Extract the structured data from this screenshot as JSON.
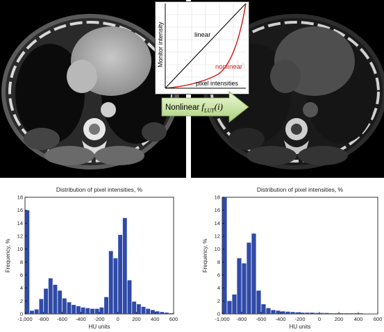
{
  "inset": {
    "y_axis_label": "Monitor intensity",
    "x_axis_label": "pixel intensities",
    "linear_label": "linear",
    "nonlinear_label": "nonlinear"
  },
  "arrow": {
    "prefix": "Nonlinear ",
    "func": "f",
    "sub": "LUT",
    "arg": "(i)"
  },
  "colors": {
    "bar": "#2f4aa8",
    "nonlinear_curve": "#d42020",
    "linear_curve": "#111111",
    "arrow_fill_top": "#eef8d8",
    "arrow_fill_bottom": "#a9d07a"
  },
  "chart_data": [
    {
      "type": "bar",
      "title": "Distribution of pixel intensities, %",
      "xlabel": "HU units",
      "ylabel": "Frequency, %",
      "xlim": [
        -1000,
        600
      ],
      "ylim": [
        0,
        18
      ],
      "xticks": [
        "-1,000",
        "-800",
        "-600",
        "-400",
        "-200",
        "0",
        "200",
        "400",
        "600"
      ],
      "yticks": [
        "0",
        "2",
        "4",
        "6",
        "8",
        "10",
        "12",
        "14",
        "16",
        "18"
      ],
      "bin_start": -1000,
      "bin_width": 50,
      "values": [
        16,
        0.5,
        0.7,
        2.3,
        3.9,
        5.5,
        4.5,
        3.6,
        2.4,
        1.8,
        1.4,
        1.2,
        1.0,
        0.9,
        0.8,
        0.8,
        1.0,
        2.6,
        9.7,
        8.6,
        12.2,
        14.8,
        5.2,
        1.9,
        1.5,
        1.1,
        0.8,
        0.6,
        0.4,
        0.3,
        0.2,
        0.1
      ]
    },
    {
      "type": "bar",
      "title": "Distribution of pixel intensities, %",
      "xlabel": "HU units",
      "ylabel": "Frequency, %",
      "xlim": [
        -1000,
        600
      ],
      "ylim": [
        0,
        18
      ],
      "xticks": [
        "-1,000",
        "-800",
        "-600",
        "-400",
        "-200",
        "0",
        "200",
        "400",
        "600"
      ],
      "yticks": [
        "0",
        "2",
        "4",
        "6",
        "8",
        "10",
        "12",
        "14",
        "16",
        "18"
      ],
      "bin_start": -1000,
      "bin_width": 50,
      "values": [
        18,
        2.0,
        3.0,
        8.6,
        7.8,
        11.0,
        12.4,
        3.6,
        1.5,
        0.9,
        0.6,
        0.5,
        0.4,
        0.35,
        0.3,
        0.25,
        0.2,
        0.2,
        0.2,
        0.15,
        0.15,
        0.15,
        0.1,
        0.1,
        0.1,
        0.1,
        0.1,
        0.1,
        0.1,
        0.05,
        0.05,
        0.05
      ]
    }
  ]
}
